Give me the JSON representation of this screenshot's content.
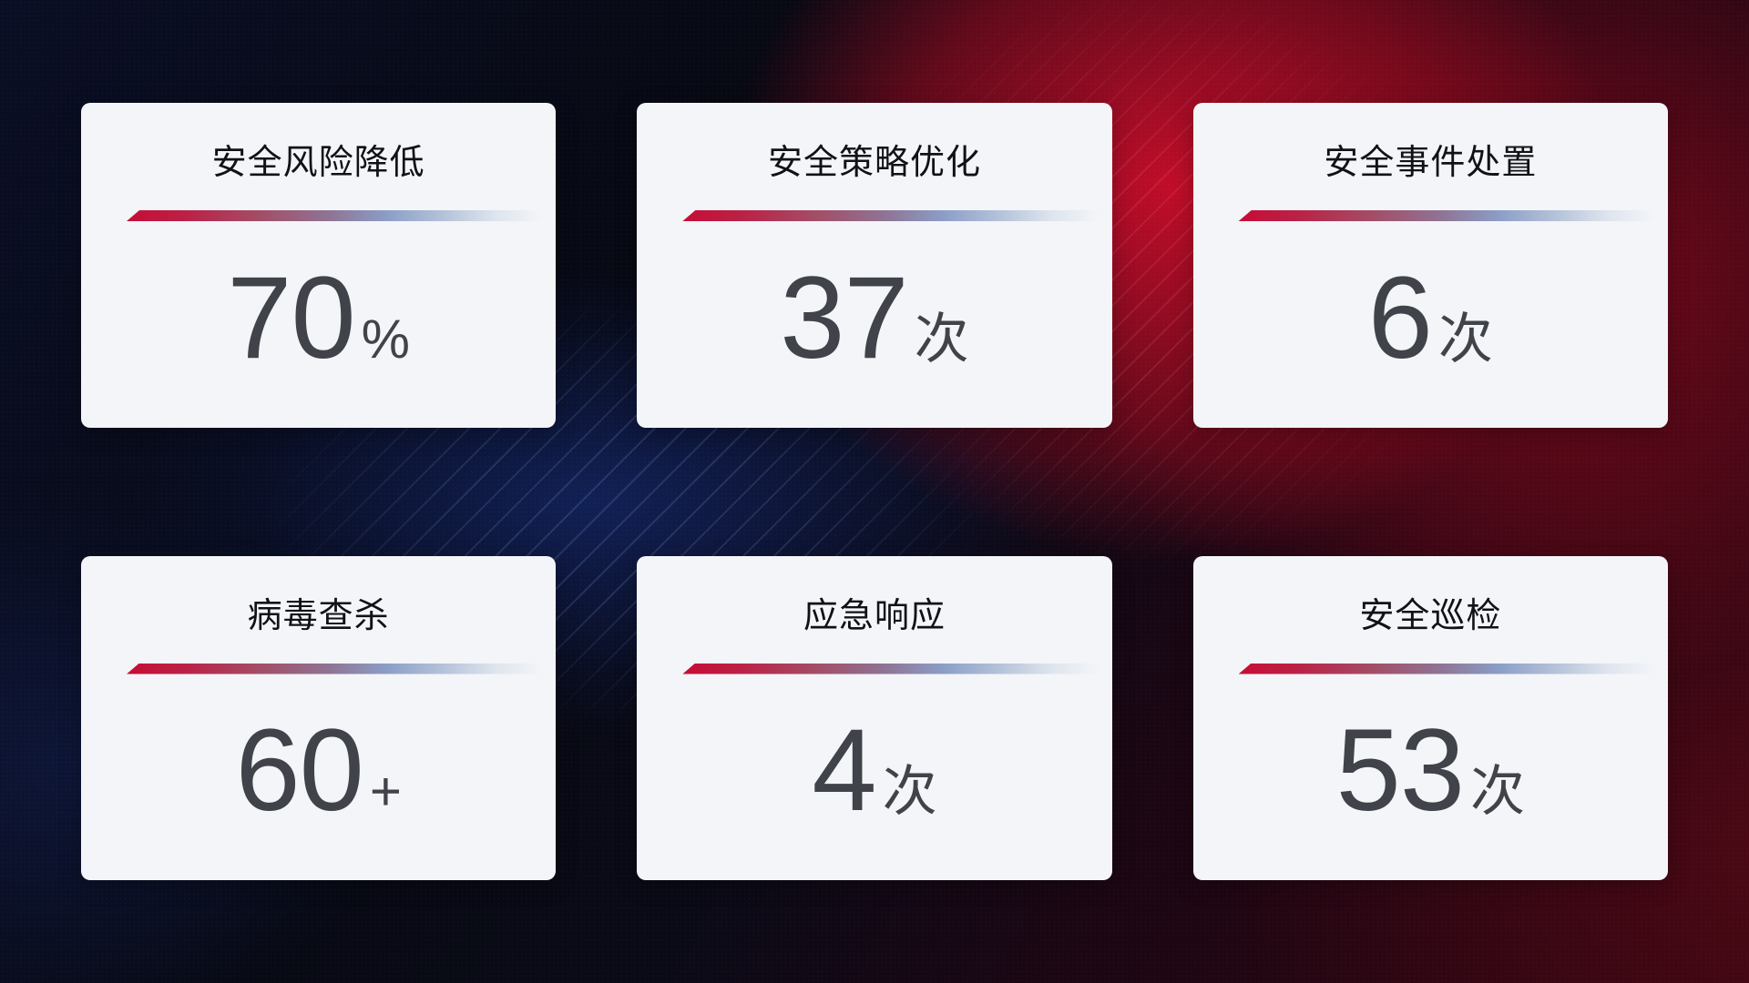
{
  "cards": [
    {
      "title": "安全风险降低",
      "value": "70",
      "unit": "%"
    },
    {
      "title": "安全策略优化",
      "value": "37",
      "unit": "次"
    },
    {
      "title": "安全事件处置",
      "value": "6",
      "unit": "次"
    },
    {
      "title": "病毒查杀",
      "value": "60",
      "unit": "+"
    },
    {
      "title": "应急响应",
      "value": "4",
      "unit": "次"
    },
    {
      "title": "安全巡检",
      "value": "53",
      "unit": "次"
    }
  ],
  "colors": {
    "card_background": "#f3f5f8",
    "title_text": "#101218",
    "value_text": "#404349",
    "divider_gradient_start": "#c60d36",
    "divider_gradient_mid": "#8b9ec7",
    "divider_gradient_end": "#dfe5ee",
    "background_blue_accent": "#172e7e",
    "background_red_accent": "#c90d2a"
  }
}
